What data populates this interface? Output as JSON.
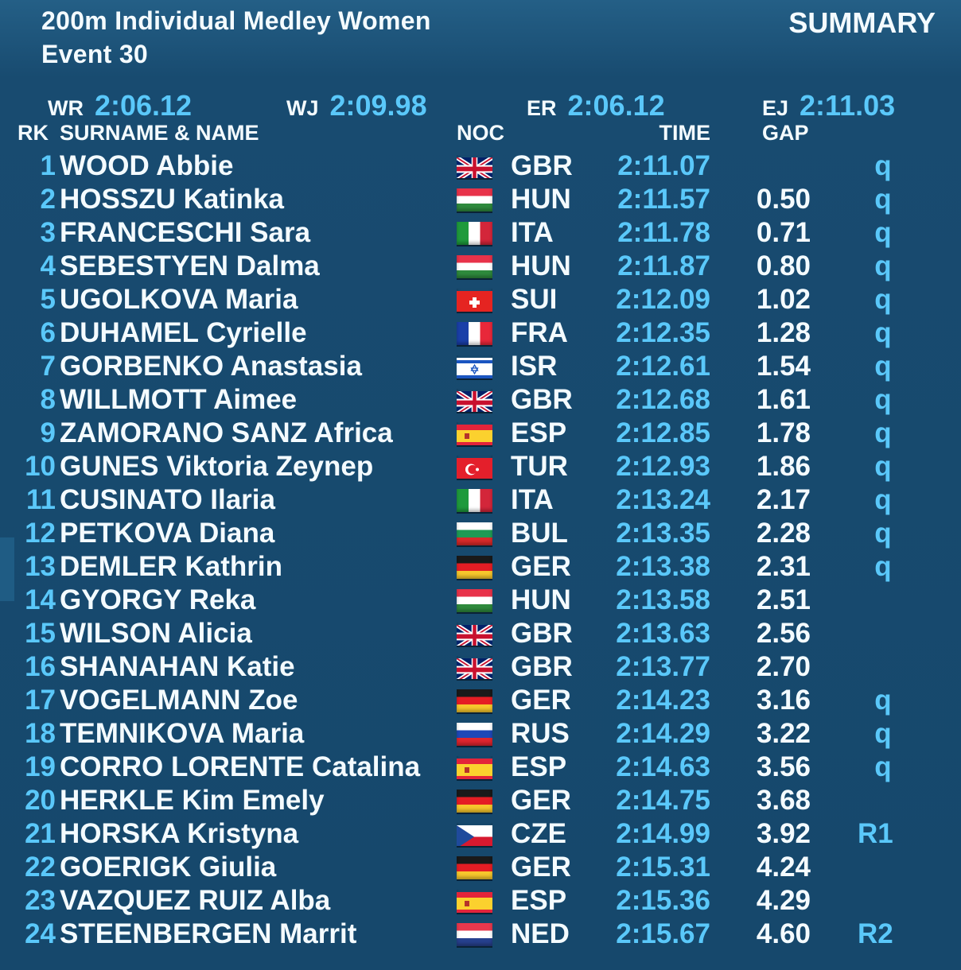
{
  "header": {
    "title": "200m Individual Medley Women",
    "event": "Event 30",
    "summary": "SUMMARY"
  },
  "records": [
    {
      "label": "WR",
      "time": "2:06.12"
    },
    {
      "label": "WJ",
      "time": "2:09.98"
    },
    {
      "label": "ER",
      "time": "2:06.12"
    },
    {
      "label": "EJ",
      "time": "2:11.03"
    }
  ],
  "columns": {
    "rank": "RK",
    "name": "SURNAME & NAME",
    "noc": "NOC",
    "time": "TIME",
    "gap": "GAP"
  },
  "colors": {
    "accent": "#5ac8fa",
    "background": "#16486c",
    "text": "#f4fbff"
  },
  "results": [
    {
      "rank": "1",
      "name": "WOOD Abbie",
      "noc": "GBR",
      "time": "2:11.07",
      "gap": "",
      "q": "q"
    },
    {
      "rank": "2",
      "name": "HOSSZU Katinka",
      "noc": "HUN",
      "time": "2:11.57",
      "gap": "0.50",
      "q": "q"
    },
    {
      "rank": "3",
      "name": "FRANCESCHI Sara",
      "noc": "ITA",
      "time": "2:11.78",
      "gap": "0.71",
      "q": "q"
    },
    {
      "rank": "4",
      "name": "SEBESTYEN Dalma",
      "noc": "HUN",
      "time": "2:11.87",
      "gap": "0.80",
      "q": "q"
    },
    {
      "rank": "5",
      "name": "UGOLKOVA Maria",
      "noc": "SUI",
      "time": "2:12.09",
      "gap": "1.02",
      "q": "q"
    },
    {
      "rank": "6",
      "name": "DUHAMEL Cyrielle",
      "noc": "FRA",
      "time": "2:12.35",
      "gap": "1.28",
      "q": "q"
    },
    {
      "rank": "7",
      "name": "GORBENKO Anastasia",
      "noc": "ISR",
      "time": "2:12.61",
      "gap": "1.54",
      "q": "q"
    },
    {
      "rank": "8",
      "name": "WILLMOTT Aimee",
      "noc": "GBR",
      "time": "2:12.68",
      "gap": "1.61",
      "q": "q"
    },
    {
      "rank": "9",
      "name": "ZAMORANO SANZ Africa",
      "noc": "ESP",
      "time": "2:12.85",
      "gap": "1.78",
      "q": "q"
    },
    {
      "rank": "10",
      "name": "GUNES Viktoria Zeynep",
      "noc": "TUR",
      "time": "2:12.93",
      "gap": "1.86",
      "q": "q"
    },
    {
      "rank": "11",
      "name": "CUSINATO Ilaria",
      "noc": "ITA",
      "time": "2:13.24",
      "gap": "2.17",
      "q": "q"
    },
    {
      "rank": "12",
      "name": "PETKOVA Diana",
      "noc": "BUL",
      "time": "2:13.35",
      "gap": "2.28",
      "q": "q"
    },
    {
      "rank": "13",
      "name": "DEMLER Kathrin",
      "noc": "GER",
      "time": "2:13.38",
      "gap": "2.31",
      "q": "q"
    },
    {
      "rank": "14",
      "name": "GYORGY Reka",
      "noc": "HUN",
      "time": "2:13.58",
      "gap": "2.51",
      "q": ""
    },
    {
      "rank": "15",
      "name": "WILSON Alicia",
      "noc": "GBR",
      "time": "2:13.63",
      "gap": "2.56",
      "q": ""
    },
    {
      "rank": "16",
      "name": "SHANAHAN Katie",
      "noc": "GBR",
      "time": "2:13.77",
      "gap": "2.70",
      "q": ""
    },
    {
      "rank": "17",
      "name": "VOGELMANN Zoe",
      "noc": "GER",
      "time": "2:14.23",
      "gap": "3.16",
      "q": "q"
    },
    {
      "rank": "18",
      "name": "TEMNIKOVA Maria",
      "noc": "RUS",
      "time": "2:14.29",
      "gap": "3.22",
      "q": "q"
    },
    {
      "rank": "19",
      "name": "CORRO LORENTE Catalina",
      "noc": "ESP",
      "time": "2:14.63",
      "gap": "3.56",
      "q": "q"
    },
    {
      "rank": "20",
      "name": "HERKLE Kim Emely",
      "noc": "GER",
      "time": "2:14.75",
      "gap": "3.68",
      "q": ""
    },
    {
      "rank": "21",
      "name": "HORSKA Kristyna",
      "noc": "CZE",
      "time": "2:14.99",
      "gap": "3.92",
      "q": "R1"
    },
    {
      "rank": "22",
      "name": "GOERIGK Giulia",
      "noc": "GER",
      "time": "2:15.31",
      "gap": "4.24",
      "q": ""
    },
    {
      "rank": "23",
      "name": "VAZQUEZ RUIZ Alba",
      "noc": "ESP",
      "time": "2:15.36",
      "gap": "4.29",
      "q": ""
    },
    {
      "rank": "24",
      "name": "STEENBERGEN Marrit",
      "noc": "NED",
      "time": "2:15.67",
      "gap": "4.60",
      "q": "R2"
    }
  ]
}
